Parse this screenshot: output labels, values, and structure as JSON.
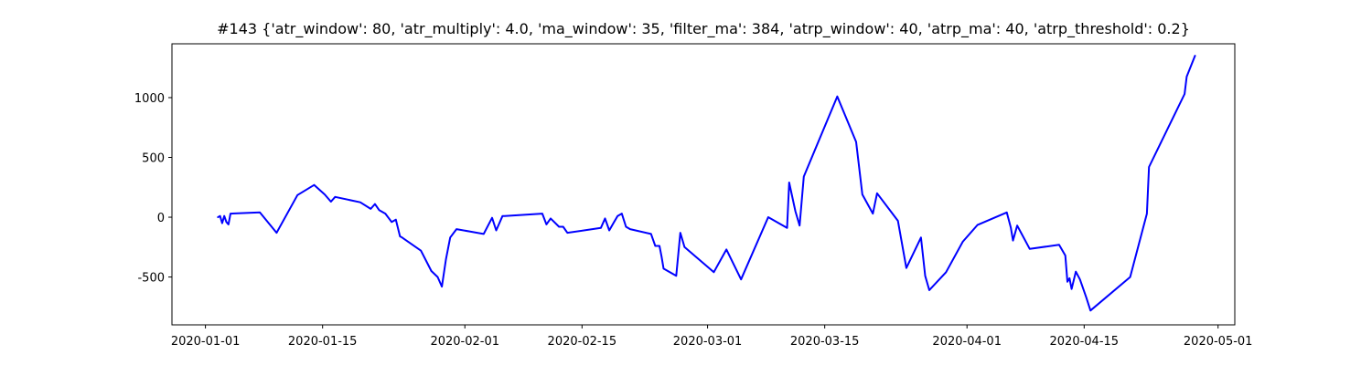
{
  "chart_data": {
    "type": "line",
    "title": "#143 {'atr_window': 80, 'atr_multiply': 4.0, 'ma_window': 35, 'filter_ma': 384, 'atrp_window': 40, 'atrp_ma': 40, 'atrp_threshold': 0.2}",
    "xlabel": "",
    "ylabel": "",
    "grid": false,
    "xlim": [
      "2019-12-28",
      "2020-05-03"
    ],
    "ylim": [
      -900,
      1450
    ],
    "x_ticks": [
      "2020-01-01",
      "2020-01-15",
      "2020-02-01",
      "2020-02-15",
      "2020-03-01",
      "2020-03-15",
      "2020-04-01",
      "2020-04-15",
      "2020-05-01"
    ],
    "y_ticks": [
      -500,
      0,
      500,
      1000
    ],
    "color": "#0000ff",
    "series": [
      {
        "x": [
          "2020-01-02T12:00",
          "2020-01-02T18:00",
          "2020-01-03T00:00",
          "2020-01-03T06:00",
          "2020-01-03T12:00",
          "2020-01-03T18:00",
          "2020-01-04T00:00",
          "2020-01-07T12:00",
          "2020-01-09T12:00",
          "2020-01-12T00:00",
          "2020-01-14T00:00",
          "2020-01-15T06:00",
          "2020-01-16T00:00",
          "2020-01-16T12:00",
          "2020-01-19T12:00",
          "2020-01-20T18:00",
          "2020-01-21T06:00",
          "2020-01-21T18:00",
          "2020-01-22T12:00",
          "2020-01-23T06:00",
          "2020-01-23T18:00",
          "2020-01-24T06:00",
          "2020-01-24T12:00",
          "2020-01-26T18:00",
          "2020-01-28T00:00",
          "2020-01-28T18:00",
          "2020-01-29T06:00",
          "2020-01-29T18:00",
          "2020-01-30T06:00",
          "2020-01-31T00:00",
          "2020-02-03T06:00",
          "2020-02-04T06:00",
          "2020-02-04T18:00",
          "2020-02-05T12:00",
          "2020-02-05T18:00",
          "2020-02-10T06:00",
          "2020-02-10T18:00",
          "2020-02-11T06:00",
          "2020-02-12T06:00",
          "2020-02-12T18:00",
          "2020-02-13T06:00",
          "2020-02-17T06:00",
          "2020-02-17T18:00",
          "2020-02-18T06:00",
          "2020-02-18T18:00",
          "2020-02-19T06:00",
          "2020-02-19T18:00",
          "2020-02-20T06:00",
          "2020-02-20T18:00",
          "2020-02-23T06:00",
          "2020-02-23T18:00",
          "2020-02-24T06:00",
          "2020-02-24T12:00",
          "2020-02-24T18:00",
          "2020-02-26T06:00",
          "2020-02-26T18:00",
          "2020-02-27T06:00",
          "2020-03-01T18:00",
          "2020-03-03T06:00",
          "2020-03-05T00:00",
          "2020-03-08T06:00",
          "2020-03-10T12:00",
          "2020-03-10T18:00",
          "2020-03-11T12:00",
          "2020-03-12T00:00",
          "2020-03-12T12:00",
          "2020-03-16T12:00",
          "2020-03-18T18:00",
          "2020-03-19T12:00",
          "2020-03-20T18:00",
          "2020-03-21T06:00",
          "2020-03-23T18:00",
          "2020-03-24T18:00",
          "2020-03-26T12:00",
          "2020-03-27T00:00",
          "2020-03-27T12:00",
          "2020-03-29T12:00",
          "2020-03-31T12:00",
          "2020-04-02T06:00",
          "2020-04-05T18:00",
          "2020-04-06T06:00",
          "2020-04-06T12:00",
          "2020-04-07T00:00",
          "2020-04-08T12:00",
          "2020-04-12T00:00",
          "2020-04-12T18:00",
          "2020-04-13T00:00",
          "2020-04-13T06:00",
          "2020-04-13T12:00",
          "2020-04-14T00:00",
          "2020-04-14T12:00",
          "2020-04-15T06:00",
          "2020-04-15T18:00",
          "2020-04-20T12:00",
          "2020-04-22T12:00",
          "2020-04-22T18:00",
          "2020-04-27T00:00",
          "2020-04-27T06:00",
          "2020-04-28T06:00"
        ],
        "y": [
          0,
          10,
          -50,
          10,
          -40,
          -60,
          30,
          40,
          -130,
          185,
          270,
          190,
          130,
          170,
          125,
          70,
          110,
          60,
          30,
          -40,
          -20,
          -160,
          -170,
          -280,
          -450,
          -500,
          -580,
          -350,
          -170,
          -100,
          -140,
          -5,
          -110,
          10,
          10,
          30,
          -60,
          -10,
          -80,
          -80,
          -130,
          -90,
          -10,
          -110,
          -50,
          10,
          30,
          -80,
          -100,
          -140,
          -240,
          -240,
          -330,
          -430,
          -490,
          -130,
          -250,
          -460,
          -270,
          -520,
          0,
          -90,
          290,
          50,
          -70,
          340,
          1010,
          630,
          190,
          30,
          200,
          -30,
          -425,
          -170,
          -490,
          -610,
          -460,
          -205,
          -65,
          40,
          -90,
          -195,
          -70,
          -265,
          -230,
          -320,
          -540,
          -510,
          -600,
          -455,
          -520,
          -670,
          -780,
          -500,
          30,
          420,
          1030,
          1175,
          1350
        ]
      }
    ]
  }
}
